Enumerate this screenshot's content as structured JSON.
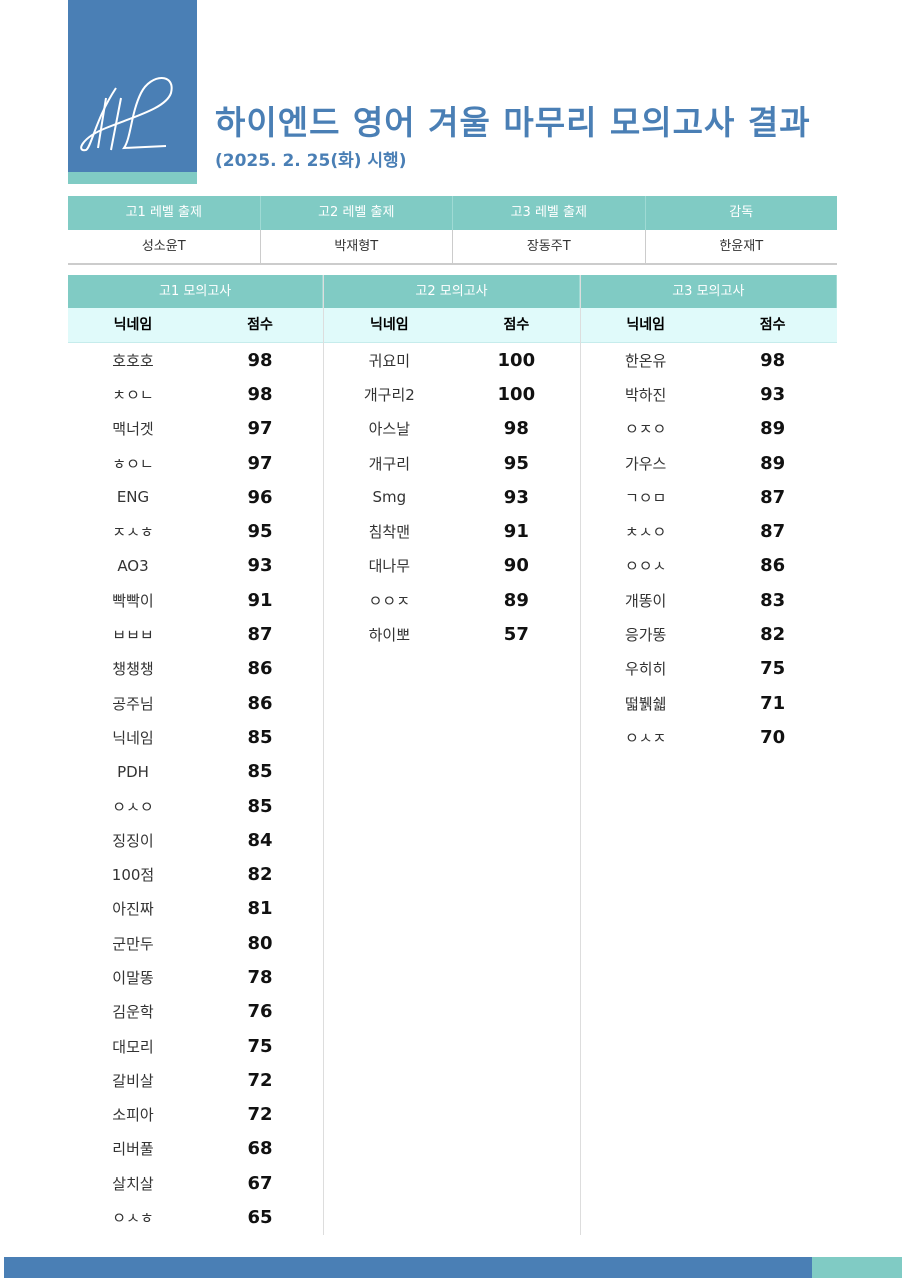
{
  "logo_text": "HL",
  "title": "하이엔드 영어 겨울 마무리 모의고사 결과",
  "subtitle": "(2025. 2. 25(화) 시행)",
  "staff": {
    "headers": [
      "고1 레벨 출제",
      "고2 레벨 출제",
      "고3 레벨 출제",
      "감독"
    ],
    "values": [
      "성소윤T",
      "박재형T",
      "장동주T",
      "한윤재T"
    ]
  },
  "exams": [
    {
      "title": "고1 모의고사",
      "col_name": "닉네임",
      "col_score": "점수",
      "rows": [
        [
          "호호호",
          "98"
        ],
        [
          "ㅊㅇㄴ",
          "98"
        ],
        [
          "맥너겟",
          "97"
        ],
        [
          "ㅎㅇㄴ",
          "97"
        ],
        [
          "ENG",
          "96"
        ],
        [
          "ㅈㅅㅎ",
          "95"
        ],
        [
          "AO3",
          "93"
        ],
        [
          "빡빡이",
          "91"
        ],
        [
          "ㅂㅂㅂ",
          "87"
        ],
        [
          "챙챙챙",
          "86"
        ],
        [
          "공주님",
          "86"
        ],
        [
          "닉네임",
          "85"
        ],
        [
          "PDH",
          "85"
        ],
        [
          "ㅇㅅㅇ",
          "85"
        ],
        [
          "징징이",
          "84"
        ],
        [
          "100점",
          "82"
        ],
        [
          "아진짜",
          "81"
        ],
        [
          "군만두",
          "80"
        ],
        [
          "이말똥",
          "78"
        ],
        [
          "김운학",
          "76"
        ],
        [
          "대모리",
          "75"
        ],
        [
          "갈비살",
          "72"
        ],
        [
          "소피아",
          "72"
        ],
        [
          "리버풀",
          "68"
        ],
        [
          "살치살",
          "67"
        ],
        [
          "ㅇㅅㅎ",
          "65"
        ]
      ]
    },
    {
      "title": "고2 모의고사",
      "col_name": "닉네임",
      "col_score": "점수",
      "rows": [
        [
          "귀요미",
          "100"
        ],
        [
          "개구리2",
          "100"
        ],
        [
          "아스날",
          "98"
        ],
        [
          "개구리",
          "95"
        ],
        [
          "Smg",
          "93"
        ],
        [
          "침착맨",
          "91"
        ],
        [
          "대나무",
          "90"
        ],
        [
          "ㅇㅇㅈ",
          "89"
        ],
        [
          "하이뽀",
          "57"
        ]
      ]
    },
    {
      "title": "고3 모의고사",
      "col_name": "닉네임",
      "col_score": "점수",
      "rows": [
        [
          "한온유",
          "98"
        ],
        [
          "박하진",
          "93"
        ],
        [
          "ㅇㅈㅇ",
          "89"
        ],
        [
          "가우스",
          "89"
        ],
        [
          "ㄱㅇㅁ",
          "87"
        ],
        [
          "ㅊㅅㅇ",
          "87"
        ],
        [
          "ㅇㅇㅅ",
          "86"
        ],
        [
          "개똥이",
          "83"
        ],
        [
          "응가똥",
          "82"
        ],
        [
          "우히히",
          "75"
        ],
        [
          "떫뷁쉛",
          "71"
        ],
        [
          "ㅇㅅㅈ",
          "70"
        ]
      ]
    }
  ],
  "colors": {
    "blue": "#4a7fb5",
    "teal": "#80cbc4",
    "light": "#e0fafa"
  }
}
